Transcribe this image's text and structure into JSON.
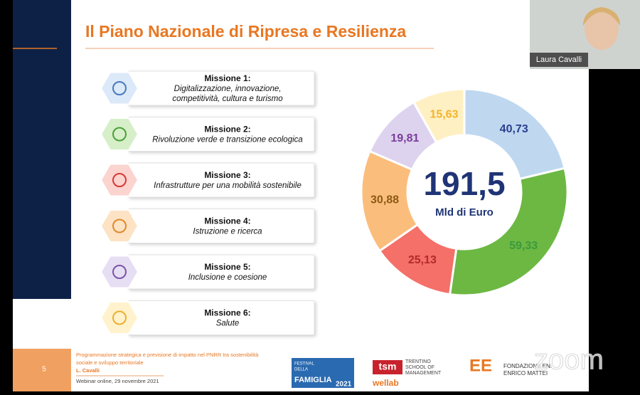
{
  "slide": {
    "title": "Il Piano Nazionale di Ripresa e Resilienza",
    "page_number": "5",
    "missions": [
      {
        "name": "Missione 1:",
        "description": [
          "Digitalizzazione, innovazione,",
          "competitività, cultura e turismo"
        ]
      },
      {
        "name": "Missione 2:",
        "description": [
          "Rivoluzione verde e transizione ecologica"
        ]
      },
      {
        "name": "Missione 3:",
        "description": [
          "Infrastrutture per una mobilità sostenibile"
        ]
      },
      {
        "name": "Missione 4:",
        "description": [
          "Istruzione e ricerca"
        ]
      },
      {
        "name": "Missione 5:",
        "description": [
          "Inclusione e coesione"
        ]
      },
      {
        "name": "Missione 6:",
        "description": [
          "Salute"
        ]
      }
    ],
    "footer": {
      "lines": [
        "Programmazione strategica e previsione di impatto nel PNRR tra sostenibilità",
        "sociale e sviluppo territoriale",
        "L. Cavalli"
      ],
      "date": "Webinar online, 29 novembre 2021"
    },
    "logos": {
      "festival": [
        "FESTIVAL",
        "DELLA",
        "FAMIGLIA",
        "2021"
      ],
      "tsm": [
        "tsm",
        "TRENTINO",
        "SCHOOL OF",
        "MANAGEMENT"
      ],
      "wellab": "wellab",
      "feem": [
        "FONDAZIONE ENI",
        "ENRICO MATTEI"
      ]
    }
  },
  "chart_data": {
    "type": "donut",
    "total_label": "191,5",
    "unit_label": "Mld di Euro",
    "values": [
      40.73,
      59.33,
      25.13,
      30.88,
      19.81,
      15.63
    ],
    "value_labels": [
      "40,73",
      "59,33",
      "25,13",
      "30,88",
      "19,81",
      "15,63"
    ],
    "colors": [
      "#bfd8f0",
      "#6cb843",
      "#f47068",
      "#fbbd7c",
      "#ddd3ee",
      "#fff0c4"
    ],
    "label_colors": [
      "#2b3f8f",
      "#3c9a3c",
      "#b22a2a",
      "#8a5a12",
      "#7b3d9c",
      "#f3b32a"
    ]
  },
  "video": {
    "participant": "Laura Cavalli",
    "watermark": "zoom"
  }
}
